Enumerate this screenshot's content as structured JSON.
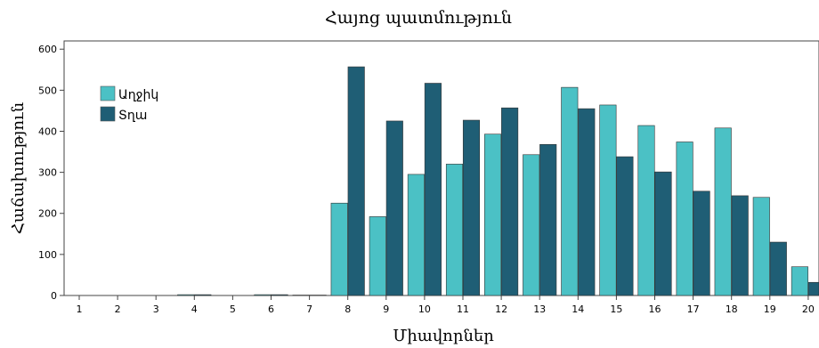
{
  "chart_data": {
    "type": "bar",
    "title": "Հայոց պատմություն",
    "xlabel": "Միավորներ",
    "ylabel": "Հաճախություն",
    "categories": [
      "1",
      "2",
      "3",
      "4",
      "5",
      "6",
      "7",
      "8",
      "9",
      "10",
      "11",
      "12",
      "13",
      "14",
      "15",
      "16",
      "17",
      "18",
      "19",
      "20"
    ],
    "series": [
      {
        "name": "Աղջիկ",
        "color": "#4BC1C5",
        "values": [
          0,
          0,
          0,
          2,
          0,
          2,
          1,
          225,
          192,
          295,
          320,
          393,
          343,
          507,
          464,
          414,
          374,
          408,
          239,
          70
        ]
      },
      {
        "name": "Տղա",
        "color": "#1F5E75",
        "values": [
          0,
          0,
          0,
          2,
          0,
          2,
          1,
          557,
          425,
          517,
          427,
          457,
          368,
          455,
          338,
          301,
          254,
          243,
          130,
          32
        ]
      }
    ],
    "yticks": [
      0,
      100,
      200,
      300,
      400,
      500,
      600
    ],
    "ylim": [
      0,
      620
    ],
    "legend_position": "top-left",
    "grid": false
  }
}
